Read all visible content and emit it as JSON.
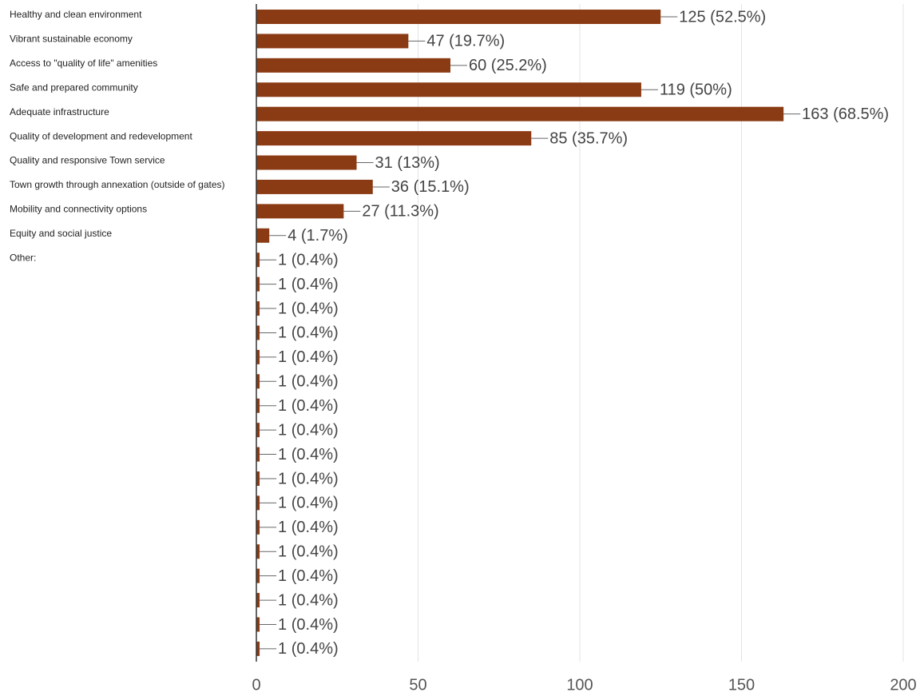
{
  "chart_data": {
    "type": "bar",
    "orientation": "horizontal",
    "categories": [
      "Healthy and clean environment",
      "Vibrant sustainable economy",
      "Access to \"quality of life\" amenities",
      "Safe and prepared community",
      "Adequate infrastructure",
      "Quality of development and redevelopment",
      "Quality and responsive Town service",
      "Town growth through annexation (outside of gates)",
      "Mobility and connectivity options",
      "Equity and social justice",
      "Other:",
      null,
      null,
      null,
      null,
      null,
      null,
      null,
      null,
      null,
      null,
      null,
      null,
      null,
      null,
      null,
      null
    ],
    "values": [
      125,
      47,
      60,
      119,
      163,
      85,
      31,
      36,
      27,
      4,
      1,
      1,
      1,
      1,
      1,
      1,
      1,
      1,
      1,
      1,
      1,
      1,
      1,
      1,
      1,
      1,
      1
    ],
    "value_labels": [
      "125 (52.5%)",
      "47 (19.7%)",
      "60 (25.2%)",
      "119 (50%)",
      "163 (68.5%)",
      "85 (35.7%)",
      "31 (13%)",
      "36 (15.1%)",
      "27 (11.3%)",
      "4 (1.7%)",
      "1 (0.4%)",
      "1 (0.4%)",
      "1 (0.4%)",
      "1 (0.4%)",
      "1 (0.4%)",
      "1 (0.4%)",
      "1 (0.4%)",
      "1 (0.4%)",
      "1 (0.4%)",
      "1 (0.4%)",
      "1 (0.4%)",
      "1 (0.4%)",
      "1 (0.4%)",
      "1 (0.4%)",
      "1 (0.4%)",
      "1 (0.4%)",
      "1 (0.4%)"
    ],
    "color": "#8b3b14",
    "xlim": [
      0,
      200
    ],
    "xticks": [
      0,
      50,
      100,
      150,
      200
    ],
    "grid": true
  }
}
